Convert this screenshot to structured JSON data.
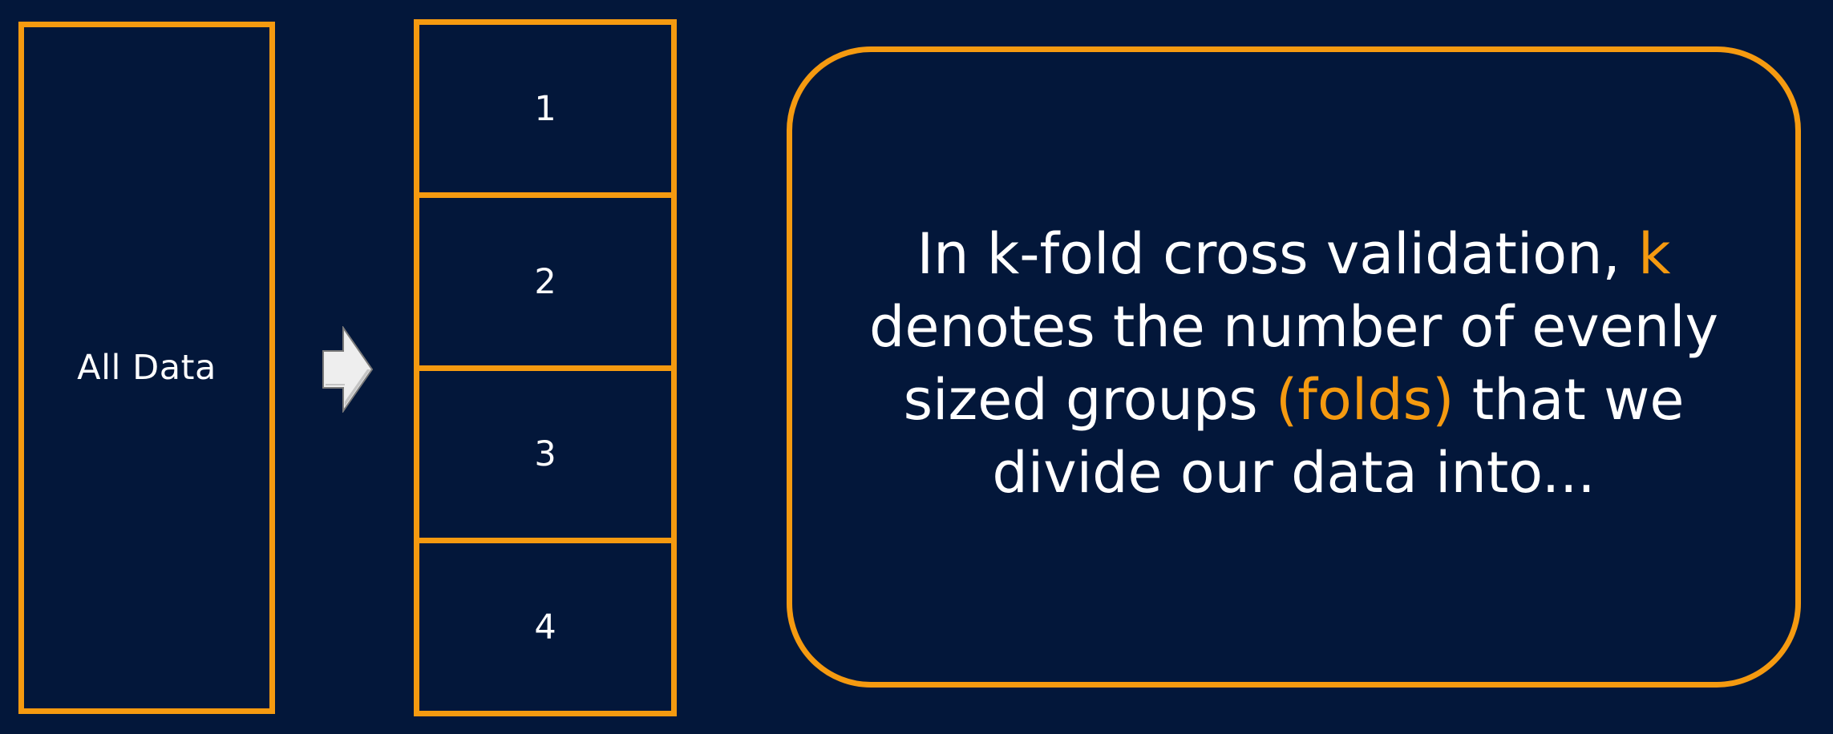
{
  "colors": {
    "background": "#03173a",
    "accent": "#f59a10",
    "text": "#ffffff",
    "arrow_fill": "#eeeeee"
  },
  "all_data": {
    "label": "All Data"
  },
  "arrow": {
    "icon": "right-arrow-icon"
  },
  "folds": [
    {
      "label": "1"
    },
    {
      "label": "2"
    },
    {
      "label": "3"
    },
    {
      "label": "4"
    }
  ],
  "info": {
    "part1": "In k-fold cross validation, ",
    "k": "k",
    "part2": " denotes the number of evenly sized groups ",
    "folds": "(folds)",
    "part3": " that we divide our data into..."
  }
}
